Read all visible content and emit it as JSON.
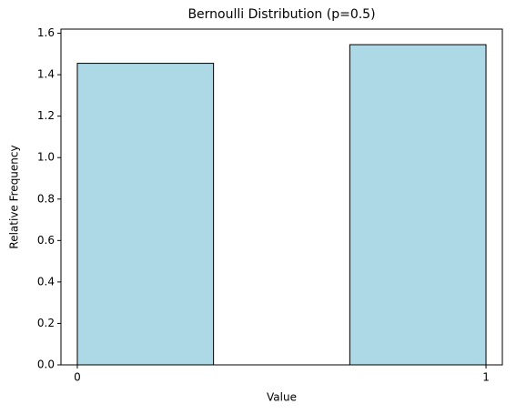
{
  "chart_data": {
    "type": "histogram",
    "title": "Bernoulli Distribution (p=0.5)",
    "x_label": "Value",
    "y_label": "Relative Frequency",
    "bins": [
      0,
      0.3333,
      0.6667,
      1
    ],
    "values": [
      1.455,
      0,
      1.545
    ],
    "color": "#add8e6",
    "edgecolor": "#000000",
    "xlim": [
      -0.04,
      1.04
    ],
    "xticks": [
      0,
      1
    ],
    "ylim": [
      0,
      1.62
    ],
    "yticks": [
      {
        "value": 0,
        "label": "0.0"
      },
      {
        "value": 0.2,
        "label": "0.2"
      },
      {
        "value": 0.4,
        "label": "0.4"
      },
      {
        "value": 0.6,
        "label": "0.6"
      },
      {
        "value": 0.8,
        "label": "0.8"
      },
      {
        "value": 1,
        "label": "1.0"
      },
      {
        "value": 1.2,
        "label": "1.2"
      },
      {
        "value": 1.4,
        "label": "1.4"
      },
      {
        "value": 1.6,
        "label": "1.6"
      }
    ],
    "grid": false
  }
}
